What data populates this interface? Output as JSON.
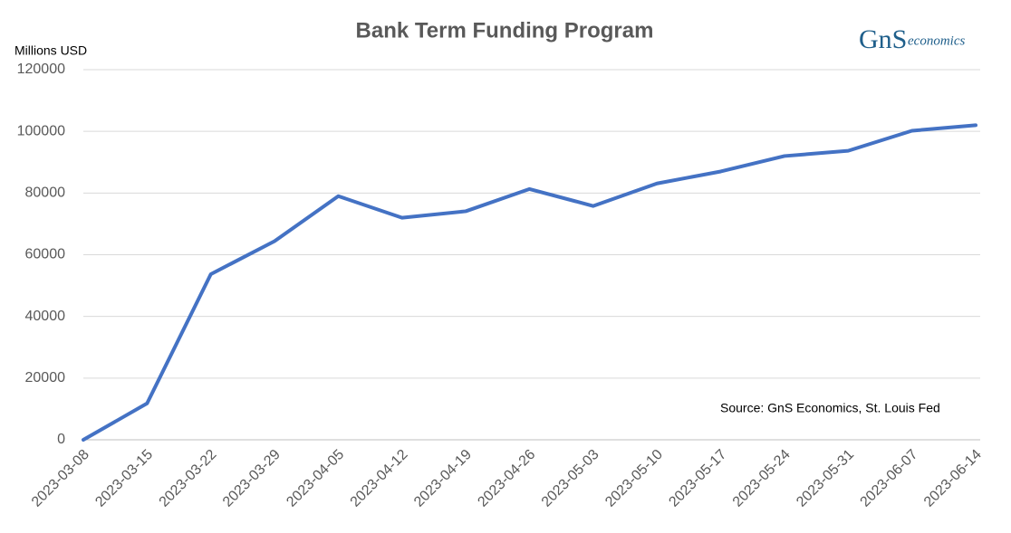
{
  "chart_data": {
    "type": "line",
    "title": "Bank Term Funding Program",
    "y_label": "Millions USD",
    "annotation": "Source: GnS Economics, St. Louis Fed",
    "logo": {
      "mark": "GnS",
      "text": "economics"
    },
    "categories": [
      "2023-03-08",
      "2023-03-15",
      "2023-03-22",
      "2023-03-29",
      "2023-04-05",
      "2023-04-12",
      "2023-04-19",
      "2023-04-26",
      "2023-05-03",
      "2023-05-10",
      "2023-05-17",
      "2023-05-24",
      "2023-05-31",
      "2023-06-07",
      "2023-06-14"
    ],
    "series": [
      {
        "name": "Bank Term Funding Program",
        "color": "#4472c4",
        "values": [
          0,
          11800,
          53700,
          64400,
          79000,
          72000,
          74100,
          81300,
          75800,
          83100,
          87000,
          92000,
          93700,
          100200,
          102000
        ]
      }
    ],
    "ylim": [
      0,
      120000
    ],
    "yticks": [
      0,
      20000,
      40000,
      60000,
      80000,
      100000,
      120000
    ],
    "grid": true
  }
}
